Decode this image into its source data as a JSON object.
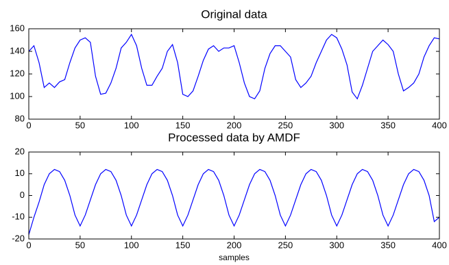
{
  "chart_data": [
    {
      "type": "line",
      "title": "Original data",
      "x": [
        0,
        5,
        10,
        15,
        20,
        25,
        30,
        35,
        40,
        45,
        50,
        55,
        60,
        65,
        70,
        75,
        80,
        85,
        90,
        95,
        100,
        105,
        110,
        115,
        120,
        125,
        130,
        135,
        140,
        145,
        150,
        155,
        160,
        165,
        170,
        175,
        180,
        185,
        190,
        195,
        200,
        205,
        210,
        215,
        220,
        225,
        230,
        235,
        240,
        245,
        250,
        255,
        260,
        265,
        270,
        275,
        280,
        285,
        290,
        295,
        300,
        305,
        310,
        315,
        320,
        325,
        330,
        335,
        340,
        345,
        350,
        355,
        360,
        365,
        370,
        375,
        380,
        385,
        390,
        395,
        400
      ],
      "series": [
        {
          "color": "#0000ff",
          "values": [
            140,
            145,
            130,
            108,
            112,
            108,
            113,
            115,
            130,
            143,
            150,
            152,
            148,
            118,
            102,
            103,
            112,
            125,
            143,
            148,
            155,
            145,
            125,
            110,
            110,
            118,
            125,
            140,
            146,
            130,
            102,
            100,
            105,
            118,
            132,
            142,
            145,
            140,
            143,
            143,
            145,
            130,
            112,
            100,
            98,
            105,
            125,
            138,
            145,
            145,
            140,
            135,
            115,
            108,
            112,
            118,
            130,
            140,
            150,
            155,
            152,
            142,
            128,
            104,
            98,
            110,
            125,
            140,
            145,
            150,
            146,
            140,
            120,
            105,
            108,
            112,
            120,
            135,
            145,
            152,
            151
          ]
        }
      ],
      "xlim": [
        0,
        400
      ],
      "xticks": [
        0,
        50,
        100,
        150,
        200,
        250,
        300,
        350,
        400
      ],
      "ylim": [
        80,
        160
      ],
      "yticks": [
        80,
        100,
        120,
        140,
        160
      ]
    },
    {
      "type": "line",
      "title": "Processed data by AMDF",
      "xlabel": "samples",
      "x": [
        0,
        5,
        10,
        15,
        20,
        25,
        30,
        35,
        40,
        45,
        50,
        55,
        60,
        65,
        70,
        75,
        80,
        85,
        90,
        95,
        100,
        105,
        110,
        115,
        120,
        125,
        130,
        135,
        140,
        145,
        150,
        155,
        160,
        165,
        170,
        175,
        180,
        185,
        190,
        195,
        200,
        205,
        210,
        215,
        220,
        225,
        230,
        235,
        240,
        245,
        250,
        255,
        260,
        265,
        270,
        275,
        280,
        285,
        290,
        295,
        300,
        305,
        310,
        315,
        320,
        325,
        330,
        335,
        340,
        345,
        350,
        355,
        360,
        365,
        370,
        375,
        380,
        385,
        390,
        395,
        400
      ],
      "series": [
        {
          "color": "#0000ff",
          "values": [
            -18,
            -10,
            -3,
            5,
            10,
            12,
            11,
            7,
            0,
            -9,
            -14,
            -9,
            -2,
            5,
            10,
            12,
            11,
            7,
            0,
            -9,
            -14,
            -9,
            -2,
            5,
            10,
            12,
            11,
            7,
            0,
            -9,
            -14,
            -9,
            -2,
            5,
            10,
            12,
            11,
            7,
            0,
            -9,
            -14,
            -9,
            -2,
            5,
            10,
            12,
            11,
            7,
            0,
            -9,
            -14,
            -9,
            -2,
            5,
            10,
            12,
            11,
            7,
            0,
            -9,
            -14,
            -9,
            -2,
            5,
            10,
            12,
            11,
            7,
            0,
            -9,
            -14,
            -9,
            -2,
            5,
            10,
            12,
            11,
            7,
            0,
            -12,
            -10
          ]
        }
      ],
      "xlim": [
        0,
        400
      ],
      "xticks": [
        0,
        50,
        100,
        150,
        200,
        250,
        300,
        350,
        400
      ],
      "ylim": [
        -20,
        20
      ],
      "yticks": [
        -20,
        -10,
        0,
        10,
        20
      ]
    }
  ]
}
